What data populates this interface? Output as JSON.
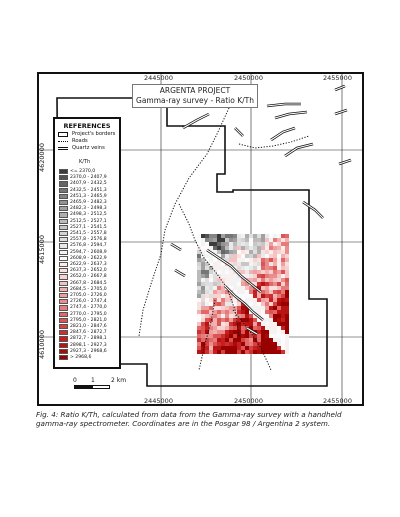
{
  "map": {
    "title_line1": "ARGENTA PROJECT",
    "title_line2": "Gamma-ray survey - Ratio K/Th",
    "x_ticks_top": [
      "2445000",
      "2450000",
      "2455000"
    ],
    "x_ticks_bottom": [
      "2445000",
      "2450000",
      "2455000"
    ],
    "y_ticks": [
      "4620000",
      "4615000",
      "4610000"
    ]
  },
  "legend": {
    "title": "REFERENCES",
    "items": [
      {
        "label": "Project's borders",
        "symbol": "box-outline"
      },
      {
        "label": "Roads",
        "symbol": "dotted-line"
      },
      {
        "label": "Quartz veins",
        "symbol": "double-line"
      }
    ],
    "unit": "K/Th",
    "ramp": [
      {
        "label": "<= 2370,0",
        "color": "#3b3b3b"
      },
      {
        "label": "2370,0 - 2407,9",
        "color": "#535353"
      },
      {
        "label": "2407,9 - 2432,5",
        "color": "#666666"
      },
      {
        "label": "2432,5 - 2451,3",
        "color": "#767676"
      },
      {
        "label": "2451,3 - 2465,9",
        "color": "#858585"
      },
      {
        "label": "2465,9 - 2482,3",
        "color": "#939393"
      },
      {
        "label": "2482,3 - 2498,3",
        "color": "#a1a1a1"
      },
      {
        "label": "2498,3 - 2512,5",
        "color": "#aeaeae"
      },
      {
        "label": "2512,5 - 2527,1",
        "color": "#bbbbbb"
      },
      {
        "label": "2527,1 - 2541,5",
        "color": "#c7c7c7"
      },
      {
        "label": "2541,5 - 2557,8",
        "color": "#d3d3d3"
      },
      {
        "label": "2557,8 - 2576,8",
        "color": "#dedede"
      },
      {
        "label": "2576,8 - 2594,7",
        "color": "#e9e9e9"
      },
      {
        "label": "2594,7 - 2608,9",
        "color": "#f3f3f3"
      },
      {
        "label": "2608,9 - 2622,9",
        "color": "#fbfbfb"
      },
      {
        "label": "2622,9 - 2637,3",
        "color": "#fdeeee"
      },
      {
        "label": "2637,3 - 2652,0",
        "color": "#fbe0e0"
      },
      {
        "label": "2652,0 - 2667,8",
        "color": "#f8d1d1"
      },
      {
        "label": "2667,8 - 2684,5",
        "color": "#f5c1c1"
      },
      {
        "label": "2684,5 - 2705,0",
        "color": "#f2b0b0"
      },
      {
        "label": "2705,0 - 2726,0",
        "color": "#ee9f9f"
      },
      {
        "label": "2726,0 - 2747,4",
        "color": "#ea8d8d"
      },
      {
        "label": "2747,4 - 2770,0",
        "color": "#e57b7b"
      },
      {
        "label": "2770,0 - 2795,0",
        "color": "#e06868"
      },
      {
        "label": "2795,0 - 2821,0",
        "color": "#da5555"
      },
      {
        "label": "2821,0 - 2847,6",
        "color": "#d44242"
      },
      {
        "label": "2847,6 - 2872,7",
        "color": "#cd3030"
      },
      {
        "label": "2872,7 - 2898,1",
        "color": "#c42020"
      },
      {
        "label": "2898,1 - 2927,3",
        "color": "#b81414"
      },
      {
        "label": "2927,3 - 2968,6",
        "color": "#aa0a0a"
      },
      {
        "label": "> 2968,6",
        "color": "#990000"
      }
    ]
  },
  "scale": {
    "labels": [
      "0",
      "1",
      "2 km"
    ]
  },
  "caption": "Fig. 4: Ratio K/Th, calculated from data from the Gamma-ray survey with a handheld gamma-ray spectrometer. Coordinates are in the Posgar 98 / Argentina 2 system."
}
